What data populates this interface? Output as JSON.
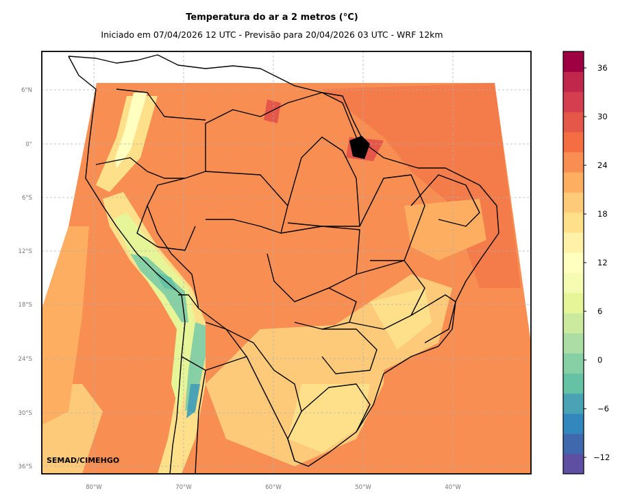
{
  "title": "Temperatura do ar a 2 metros (°C)",
  "subtitle": "Iniciado em 07/04/2026 12 UTC - Previsão para 20/04/2026 03 UTC - WRF 12km",
  "credit": "SEMAD/CIMEHGO",
  "lat_labels": [
    "6°N",
    "0°",
    "6°S",
    "12°S",
    "18°S",
    "24°S",
    "30°S",
    "36°S"
  ],
  "lon_labels": [
    "80°W",
    "70°W",
    "60°W",
    "50°W",
    "40°W"
  ],
  "colorbar": {
    "ticks": [
      "36",
      "30",
      "24",
      "18",
      "12",
      "6",
      "0",
      "−6",
      "−12"
    ],
    "colors": [
      "#5e4fa2",
      "#3f68ad",
      "#3288bd",
      "#4aa2b5",
      "#66c2a5",
      "#87cfa4",
      "#abdda4",
      "#cbea9d",
      "#e6f598",
      "#f5fbb0",
      "#ffffbf",
      "#fff1a8",
      "#fee08b",
      "#fdca79",
      "#fdae61",
      "#f98e52",
      "#f46d43",
      "#e55749",
      "#d53e4f",
      "#c1274a",
      "#9e0142"
    ]
  }
}
